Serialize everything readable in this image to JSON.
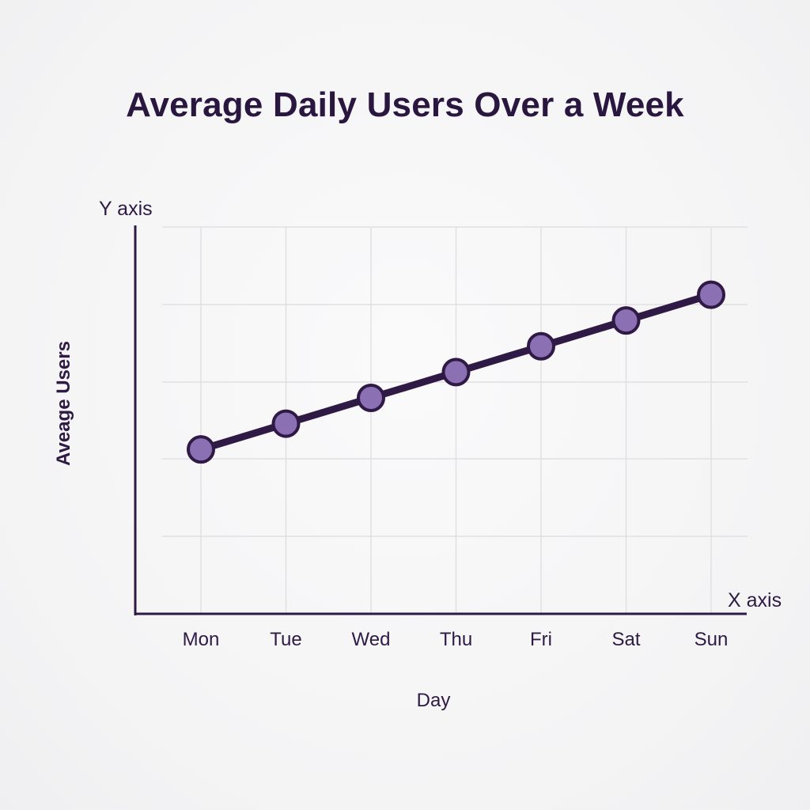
{
  "chart_data": {
    "type": "line",
    "title": "Average Daily Users Over a Week",
    "xlabel": "Day",
    "ylabel": "Aveage Users",
    "x_axis_marker": "X axis",
    "y_axis_marker": "Y axis",
    "categories": [
      "Mon",
      "Tue",
      "Wed",
      "Thu",
      "Fri",
      "Sat",
      "Sun"
    ],
    "values": [
      1.55,
      1.95,
      2.35,
      2.75,
      3.15,
      3.55,
      3.95
    ],
    "ylim": [
      -1,
      5
    ],
    "y_tick_labels": [],
    "grid": true,
    "legend": "none",
    "colors": {
      "line": "#2e1a44",
      "marker_fill": "#8b70b3",
      "marker_stroke": "#2e1a44",
      "grid": "#dcdcdf",
      "axis": "#2e1a44"
    }
  }
}
